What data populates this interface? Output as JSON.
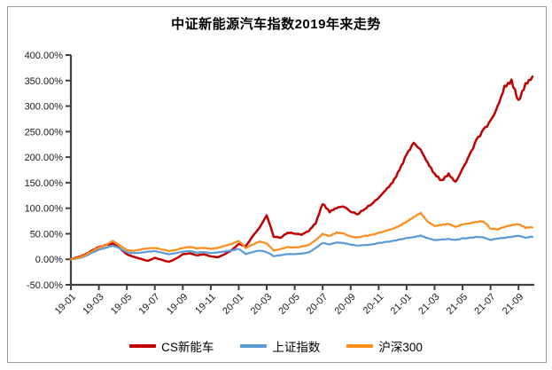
{
  "title": "中证新能源汽车指数2019年来走势",
  "colors": {
    "series_red": "#C00000",
    "series_blue": "#5B9BD5",
    "series_orange": "#FF8C1A",
    "axis": "#3f3f3f",
    "tick_text": "#1a1a1a",
    "frame_border": "#9b9b9b",
    "background": "#ffffff"
  },
  "legend": {
    "items": [
      {
        "label": "CS新能车",
        "color": "#C00000"
      },
      {
        "label": "上证指数",
        "color": "#5B9BD5"
      },
      {
        "label": "沪深300",
        "color": "#FF8C1A"
      }
    ]
  },
  "chart_data": {
    "type": "line",
    "title": "中证新能源汽车指数2019年来走势",
    "xlabel": "",
    "ylabel": "",
    "grid": false,
    "legend_position": "bottom",
    "ylim": [
      -50,
      400
    ],
    "xlim": [
      0,
      33
    ],
    "yticks": [
      400,
      350,
      300,
      250,
      200,
      150,
      100,
      50,
      0,
      -50
    ],
    "ytick_format": "0.00%",
    "xtick_labels": [
      "19-01",
      "19-03",
      "19-05",
      "19-07",
      "19-09",
      "19-11",
      "20-01",
      "20-03",
      "20-05",
      "20-07",
      "20-09",
      "20-11",
      "21-01",
      "21-03",
      "21-05",
      "21-07",
      "21-09"
    ],
    "xtick_step_months": 2,
    "x_note": "x = months since Jan 2019, sampled semi-monthly; values are cumulative return in % read from chart",
    "x": [
      0,
      0.5,
      1,
      1.5,
      2,
      2.5,
      3,
      3.5,
      4,
      4.5,
      5,
      5.5,
      6,
      6.5,
      7,
      7.5,
      8,
      8.5,
      9,
      9.5,
      10,
      10.5,
      11,
      11.5,
      12,
      12.5,
      13,
      13.5,
      14,
      14.5,
      15,
      15.5,
      16,
      16.5,
      17,
      17.5,
      18,
      18.5,
      19,
      19.5,
      20,
      20.5,
      21,
      21.5,
      22,
      22.5,
      23,
      23.5,
      24,
      24.5,
      25,
      25.5,
      26,
      26.5,
      27,
      27.5,
      28,
      28.5,
      29,
      29.5,
      30,
      30.5,
      31,
      31.5,
      32,
      32.5,
      33
    ],
    "series": [
      {
        "name": "CS新能车",
        "color": "#C00000",
        "values": [
          0,
          4,
          9,
          17,
          24,
          28,
          31,
          22,
          10,
          5,
          1,
          -3,
          3,
          -1,
          -5,
          1,
          10,
          12,
          8,
          10,
          6,
          4,
          10,
          18,
          30,
          25,
          45,
          62,
          86,
          44,
          42,
          52,
          50,
          48,
          55,
          70,
          108,
          92,
          100,
          103,
          93,
          88,
          98,
          108,
          120,
          135,
          150,
          175,
          205,
          228,
          215,
          190,
          168,
          155,
          168,
          152,
          178,
          205,
          235,
          255,
          272,
          300,
          340,
          352,
          312,
          345,
          358
        ]
      },
      {
        "name": "上证指数",
        "color": "#5B9BD5",
        "values": [
          0,
          2,
          6,
          13,
          19,
          23,
          27,
          22,
          14,
          12,
          13,
          15,
          16,
          13,
          10,
          12,
          15,
          16,
          13,
          14,
          12,
          13,
          15,
          17,
          20,
          10,
          14,
          17,
          14,
          6,
          8,
          10,
          10,
          11,
          13,
          22,
          32,
          29,
          33,
          32,
          29,
          27,
          28,
          29,
          32,
          34,
          36,
          39,
          42,
          44,
          47,
          42,
          38,
          39,
          40,
          38,
          41,
          42,
          44,
          43,
          38,
          41,
          42,
          44,
          46,
          42,
          44
        ]
      },
      {
        "name": "沪深300",
        "color": "#FF8C1A",
        "values": [
          0,
          3,
          8,
          16,
          23,
          28,
          36,
          27,
          18,
          16,
          19,
          21,
          22,
          19,
          16,
          18,
          22,
          24,
          21,
          22,
          20,
          22,
          26,
          30,
          36,
          22,
          29,
          35,
          31,
          17,
          20,
          24,
          23,
          25,
          28,
          38,
          50,
          46,
          53,
          51,
          45,
          43,
          46,
          48,
          52,
          56,
          60,
          66,
          74,
          83,
          91,
          74,
          65,
          67,
          69,
          63,
          68,
          70,
          73,
          74,
          60,
          58,
          63,
          66,
          68,
          61,
          62
        ]
      }
    ]
  }
}
